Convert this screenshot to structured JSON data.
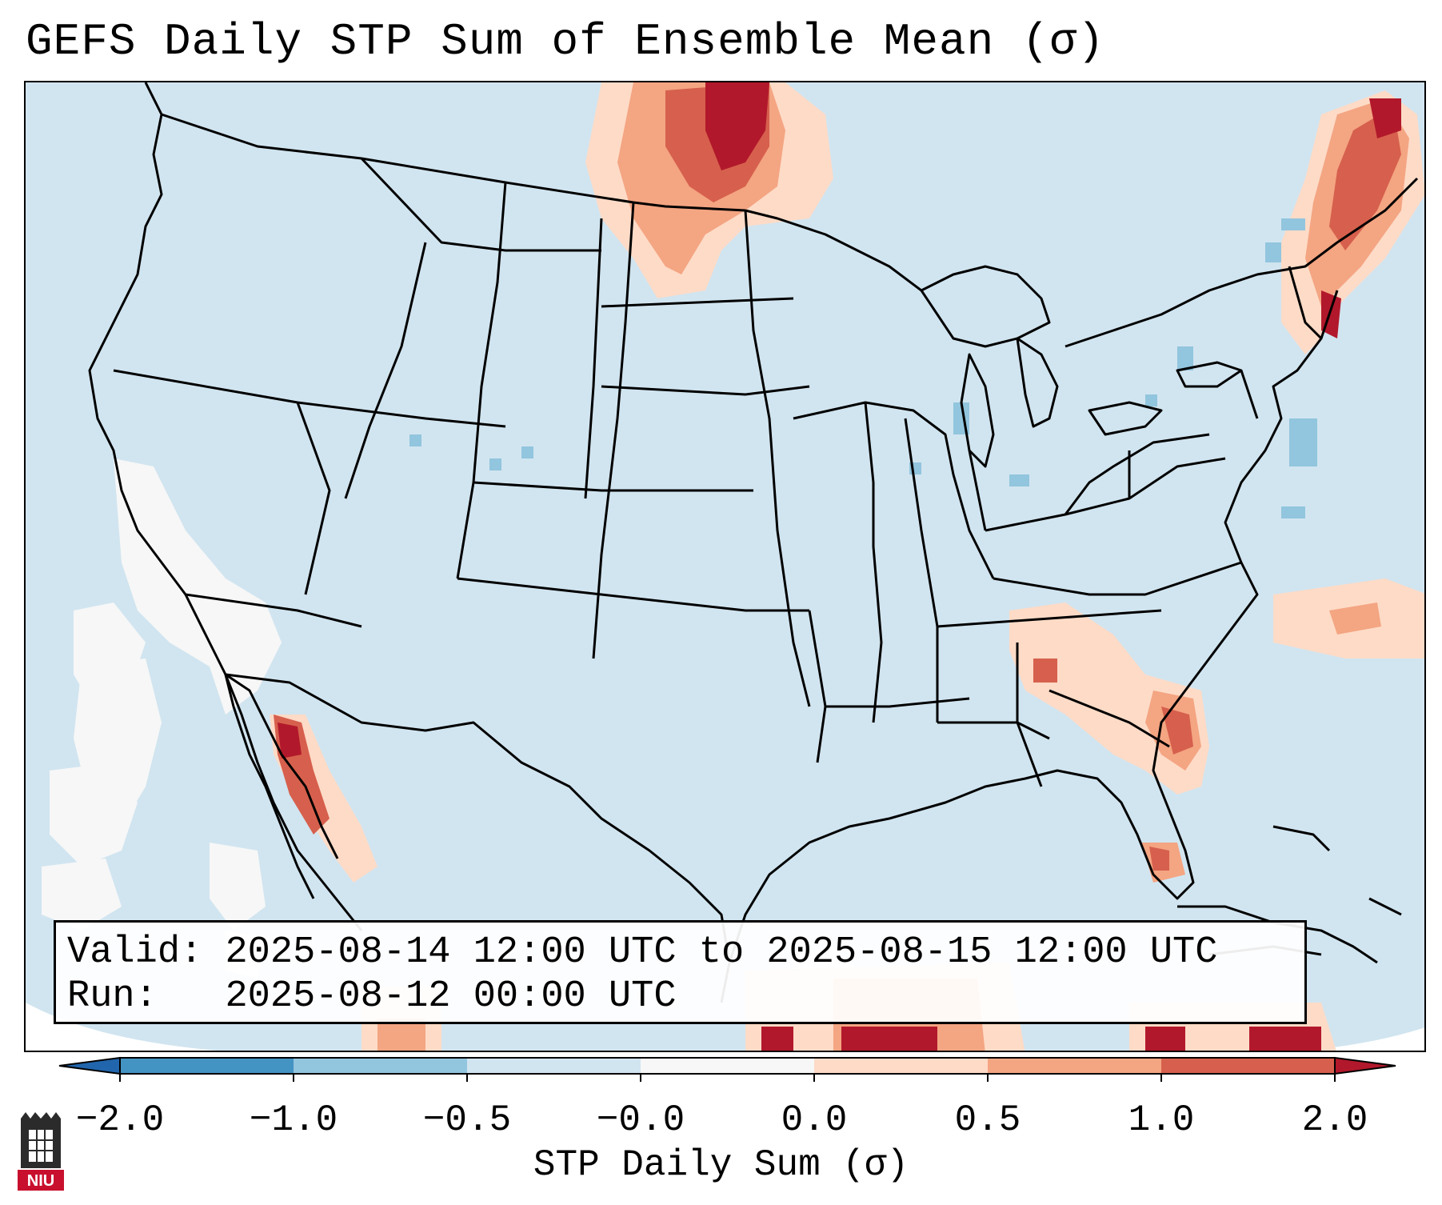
{
  "title": "GEFS Daily STP Sum of Ensemble Mean (σ)",
  "info": {
    "valid_label": "Valid:",
    "valid_value": "2025-08-14 12:00 UTC to 2025-08-15 12:00 UTC",
    "run_label": "Run:",
    "run_value": "2025-08-12 00:00 UTC"
  },
  "colorbar": {
    "label": "STP Daily Sum (σ)",
    "ticks": [
      "−2.0",
      "−1.0",
      "−0.5",
      "−0.0",
      "0.0",
      "0.5",
      "1.0",
      "2.0"
    ],
    "colors": [
      "#4393c3",
      "#92c5de",
      "#d1e5f0",
      "#f7f7f7",
      "#fddbc7",
      "#f4a582",
      "#d6604d"
    ],
    "under_color": "#2166ac",
    "over_color": "#b2182b"
  },
  "map": {
    "background_color": "#d1e5f0",
    "border_color": "#000000",
    "hotspots": [
      {
        "region": "North Dakota / southern Manitoba",
        "level": 2.0
      },
      {
        "region": "Northern New England / Quebec",
        "level": 1.5
      },
      {
        "region": "Gulf of California",
        "level": 1.5
      },
      {
        "region": "Carolina coast / Atlantic",
        "level": 1.0
      },
      {
        "region": "Southern Florida",
        "level": 1.0
      },
      {
        "region": "Caribbean / Central America",
        "level": 2.0
      }
    ]
  },
  "logo": {
    "text": "NIU"
  }
}
